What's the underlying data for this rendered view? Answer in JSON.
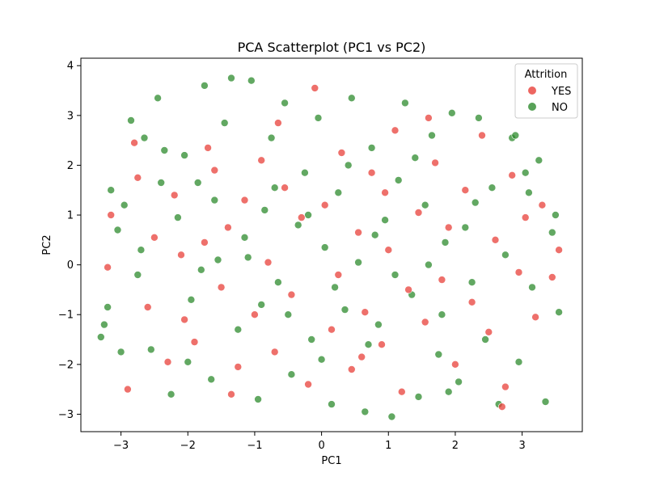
{
  "chart_data": {
    "type": "scatter",
    "title": "PCA Scatterplot (PC1 vs PC2)",
    "xlabel": "PC1",
    "ylabel": "PC2",
    "xlim": [
      -3.6,
      3.9
    ],
    "ylim": [
      -3.35,
      4.15
    ],
    "xticks": [
      -3,
      -2,
      -1,
      0,
      1,
      2,
      3
    ],
    "yticks": [
      -3,
      -2,
      -1,
      0,
      1,
      2,
      3,
      4
    ],
    "grid": false,
    "legend": {
      "title": "Attrition",
      "placement": "top-right"
    },
    "series": [
      {
        "name": "YES",
        "color": "#e8403a",
        "points": [
          [
            -3.15,
            1.0
          ],
          [
            -2.9,
            -2.5
          ],
          [
            -2.8,
            2.45
          ],
          [
            -2.75,
            1.75
          ],
          [
            -2.6,
            -0.85
          ],
          [
            -2.5,
            0.55
          ],
          [
            -2.3,
            -1.95
          ],
          [
            -2.2,
            1.4
          ],
          [
            -2.1,
            0.2
          ],
          [
            -1.9,
            -1.55
          ],
          [
            -1.7,
            2.35
          ],
          [
            -1.6,
            1.9
          ],
          [
            -1.5,
            -0.45
          ],
          [
            -1.4,
            0.75
          ],
          [
            -1.25,
            -2.05
          ],
          [
            -1.15,
            1.3
          ],
          [
            -1.0,
            -1.0
          ],
          [
            -0.9,
            2.1
          ],
          [
            -0.8,
            0.05
          ],
          [
            -0.7,
            -1.75
          ],
          [
            -0.55,
            1.55
          ],
          [
            -0.45,
            -0.6
          ],
          [
            -0.3,
            0.95
          ],
          [
            -0.2,
            -2.4
          ],
          [
            -0.1,
            3.55
          ],
          [
            0.05,
            1.2
          ],
          [
            0.15,
            -1.3
          ],
          [
            0.25,
            -0.2
          ],
          [
            0.3,
            2.25
          ],
          [
            0.45,
            -2.1
          ],
          [
            0.55,
            0.65
          ],
          [
            0.65,
            -0.95
          ],
          [
            0.75,
            1.85
          ],
          [
            0.9,
            -1.6
          ],
          [
            1.0,
            0.3
          ],
          [
            1.1,
            2.7
          ],
          [
            1.2,
            -2.55
          ],
          [
            1.3,
            -0.5
          ],
          [
            1.45,
            1.05
          ],
          [
            1.55,
            -1.15
          ],
          [
            1.7,
            2.05
          ],
          [
            1.8,
            -0.3
          ],
          [
            1.9,
            0.75
          ],
          [
            2.0,
            -2.0
          ],
          [
            2.15,
            1.5
          ],
          [
            2.25,
            -0.75
          ],
          [
            2.4,
            2.6
          ],
          [
            2.5,
            -1.35
          ],
          [
            2.6,
            0.5
          ],
          [
            2.75,
            -2.45
          ],
          [
            2.85,
            1.8
          ],
          [
            2.95,
            -0.15
          ],
          [
            3.05,
            0.95
          ],
          [
            3.2,
            -1.05
          ],
          [
            3.3,
            1.2
          ],
          [
            3.45,
            -0.25
          ],
          [
            3.55,
            0.3
          ],
          [
            -3.2,
            -0.05
          ],
          [
            -1.35,
            -2.6
          ],
          [
            0.6,
            -1.85
          ],
          [
            -0.65,
            2.85
          ],
          [
            1.6,
            2.95
          ],
          [
            2.7,
            -2.85
          ],
          [
            -2.05,
            -1.1
          ],
          [
            0.95,
            1.45
          ],
          [
            -1.75,
            0.45
          ]
        ]
      },
      {
        "name": "NO",
        "color": "#2e8b2e",
        "points": [
          [
            -3.3,
            -1.45
          ],
          [
            -3.25,
            -1.2
          ],
          [
            -3.2,
            -0.85
          ],
          [
            -3.15,
            1.5
          ],
          [
            -3.05,
            0.7
          ],
          [
            -2.95,
            1.2
          ],
          [
            -2.85,
            2.9
          ],
          [
            -2.75,
            -0.2
          ],
          [
            -2.65,
            2.55
          ],
          [
            -2.55,
            -1.7
          ],
          [
            -2.45,
            3.35
          ],
          [
            -2.35,
            2.3
          ],
          [
            -2.25,
            -2.6
          ],
          [
            -2.15,
            0.95
          ],
          [
            -2.05,
            2.2
          ],
          [
            -1.95,
            -0.7
          ],
          [
            -1.85,
            1.65
          ],
          [
            -1.75,
            3.6
          ],
          [
            -1.65,
            -2.3
          ],
          [
            -1.55,
            0.1
          ],
          [
            -1.45,
            2.85
          ],
          [
            -1.35,
            3.75
          ],
          [
            -1.25,
            -1.3
          ],
          [
            -1.15,
            0.55
          ],
          [
            -1.05,
            3.7
          ],
          [
            -0.95,
            -2.7
          ],
          [
            -0.85,
            1.1
          ],
          [
            -0.75,
            2.55
          ],
          [
            -0.65,
            -0.35
          ],
          [
            -0.55,
            3.25
          ],
          [
            -0.45,
            -2.2
          ],
          [
            -0.35,
            0.8
          ],
          [
            -0.25,
            1.85
          ],
          [
            -0.15,
            -1.5
          ],
          [
            -0.05,
            2.95
          ],
          [
            0.05,
            0.35
          ],
          [
            0.15,
            -2.8
          ],
          [
            0.25,
            1.45
          ],
          [
            0.35,
            -0.9
          ],
          [
            0.45,
            3.35
          ],
          [
            0.55,
            0.05
          ],
          [
            0.65,
            -2.95
          ],
          [
            0.75,
            2.35
          ],
          [
            0.85,
            -1.2
          ],
          [
            0.95,
            0.9
          ],
          [
            1.05,
            -3.05
          ],
          [
            1.15,
            1.7
          ],
          [
            1.25,
            3.25
          ],
          [
            1.35,
            -0.6
          ],
          [
            1.45,
            -2.65
          ],
          [
            1.55,
            1.2
          ],
          [
            1.65,
            2.6
          ],
          [
            1.75,
            -1.8
          ],
          [
            1.85,
            0.45
          ],
          [
            1.95,
            3.05
          ],
          [
            2.05,
            -2.35
          ],
          [
            2.15,
            0.75
          ],
          [
            2.25,
            -0.35
          ],
          [
            2.35,
            2.95
          ],
          [
            2.45,
            -1.5
          ],
          [
            2.55,
            1.55
          ],
          [
            2.65,
            -2.8
          ],
          [
            2.75,
            0.2
          ],
          [
            2.85,
            2.55
          ],
          [
            2.95,
            -1.95
          ],
          [
            3.05,
            1.85
          ],
          [
            3.15,
            -0.45
          ],
          [
            3.25,
            2.1
          ],
          [
            3.35,
            -2.75
          ],
          [
            3.45,
            0.65
          ],
          [
            3.5,
            1.0
          ],
          [
            3.55,
            -0.95
          ],
          [
            -2.7,
            0.3
          ],
          [
            -2.0,
            -1.95
          ],
          [
            -1.6,
            1.3
          ],
          [
            -0.9,
            -0.8
          ],
          [
            -0.2,
            1.0
          ],
          [
            0.4,
            2.0
          ],
          [
            1.1,
            -0.2
          ],
          [
            1.8,
            -1.0
          ],
          [
            2.3,
            1.25
          ],
          [
            -1.1,
            0.15
          ],
          [
            0.0,
            -1.9
          ],
          [
            0.8,
            0.6
          ],
          [
            1.4,
            2.15
          ],
          [
            -0.5,
            -1.0
          ],
          [
            2.9,
            2.6
          ],
          [
            -2.4,
            1.65
          ],
          [
            0.2,
            -0.45
          ],
          [
            -1.8,
            -0.1
          ],
          [
            1.9,
            -2.55
          ],
          [
            -3.0,
            -1.75
          ],
          [
            3.1,
            1.45
          ],
          [
            -0.7,
            1.55
          ],
          [
            0.7,
            -1.6
          ],
          [
            1.6,
            0.0
          ]
        ]
      }
    ]
  }
}
